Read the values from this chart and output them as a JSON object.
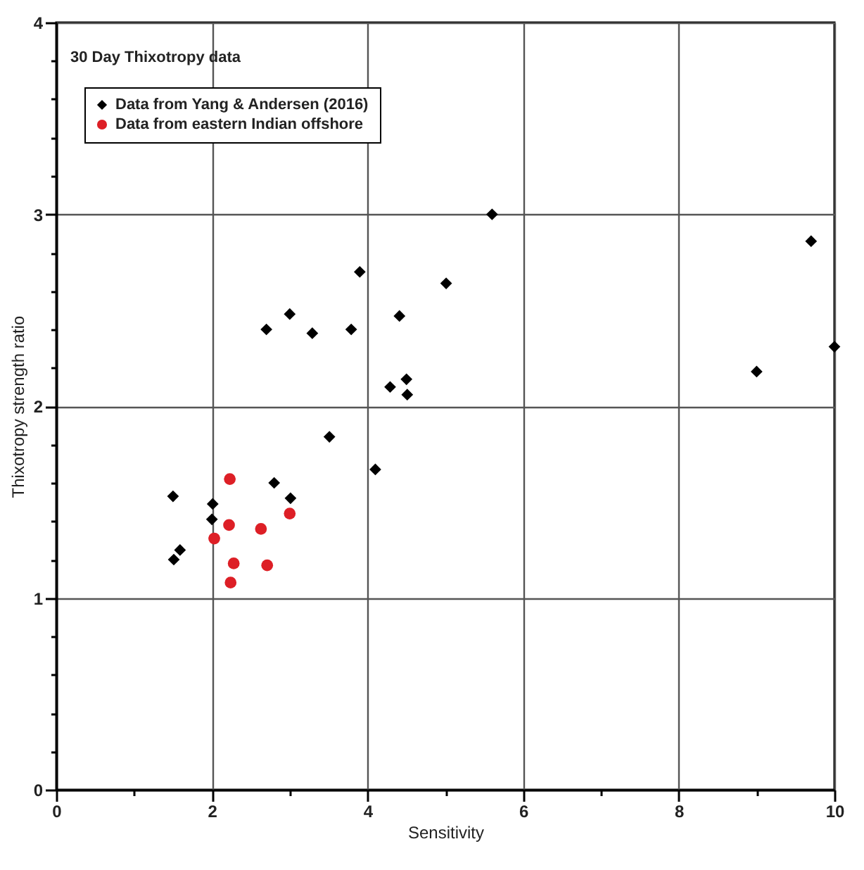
{
  "chart_data": {
    "type": "scatter",
    "title": "30 Day Thixotropy data",
    "xlabel": "Sensitivity",
    "ylabel": "Thixotropy strength ratio",
    "series": [
      {
        "name": "Data from Yang & Andersen (2016)",
        "color": "#000000",
        "marker": "diamond",
        "x": [
          3.9,
          5.01,
          3.0,
          2.7,
          3.29,
          3.79,
          4.41,
          4.29,
          4.5,
          4.51,
          3.51,
          4.1,
          2.8,
          3.01,
          1.5,
          2.01,
          2.0,
          1.59,
          1.51,
          5.6,
          9.7,
          9.0,
          10.0
        ],
        "values": [
          2.7,
          2.64,
          2.48,
          2.4,
          2.38,
          2.4,
          2.47,
          2.1,
          2.14,
          2.06,
          1.84,
          1.67,
          1.6,
          1.52,
          1.53,
          1.49,
          1.41,
          1.25,
          1.2,
          3.0,
          2.86,
          2.18,
          2.31
        ]
      },
      {
        "name": "Data from eastern Indian offshore",
        "color": "#dd1f26",
        "marker": "circle",
        "x": [
          2.23,
          2.22,
          2.63,
          3.0,
          2.03,
          2.28,
          2.71,
          2.24
        ],
        "values": [
          1.62,
          1.38,
          1.36,
          1.44,
          1.31,
          1.18,
          1.17,
          1.08
        ]
      }
    ],
    "xlim": [
      0,
      10
    ],
    "ylim": [
      0,
      4
    ],
    "xticks": [
      0,
      {
        "value": 1,
        "label": null
      },
      2,
      {
        "value": 3,
        "label": null
      },
      4,
      {
        "value": 5,
        "label": null
      },
      6,
      {
        "value": 7,
        "label": null
      },
      8,
      {
        "value": 9,
        "label": null
      },
      10
    ],
    "yticks": [
      0,
      {
        "value": 0.2,
        "label": null
      },
      {
        "value": 0.4,
        "label": null
      },
      {
        "value": 0.6,
        "label": null
      },
      {
        "value": 0.8,
        "label": null
      },
      1,
      {
        "value": 1.2,
        "label": null
      },
      {
        "value": 1.4,
        "label": null
      },
      {
        "value": 1.6,
        "label": null
      },
      {
        "value": 1.8,
        "label": null
      },
      2,
      {
        "value": 2.2,
        "label": null
      },
      {
        "value": 2.4,
        "label": null
      },
      {
        "value": 2.6,
        "label": null
      },
      {
        "value": 2.8,
        "label": null
      },
      3,
      {
        "value": 3.2,
        "label": null
      },
      {
        "value": 3.4,
        "label": null
      },
      {
        "value": 3.6,
        "label": null
      },
      {
        "value": 3.8,
        "label": null
      },
      4
    ],
    "grid": true,
    "legend": "top left"
  }
}
